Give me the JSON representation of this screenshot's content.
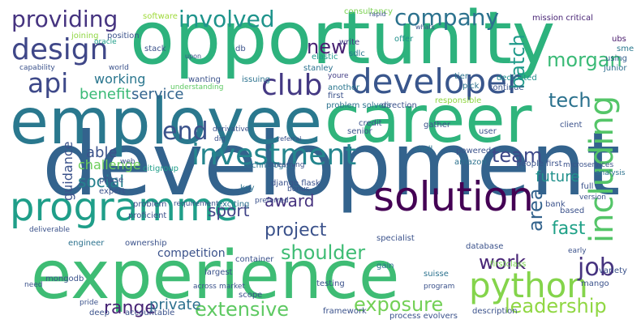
{
  "words": [
    {
      "text": "development",
      "color": "#33638d"
    },
    {
      "text": "opportunity",
      "color": "#2db27d"
    },
    {
      "text": "employee",
      "color": "#2a788e"
    },
    {
      "text": "career",
      "color": "#2fb47c"
    },
    {
      "text": "experience",
      "color": "#3ebc74"
    },
    {
      "text": "programme",
      "color": "#1f9e89"
    },
    {
      "text": "solution",
      "color": "#440154"
    },
    {
      "text": "python",
      "color": "#84d44b"
    },
    {
      "text": "developer",
      "color": "#39568c"
    },
    {
      "text": "investment",
      "color": "#24868e"
    },
    {
      "text": "club",
      "color": "#443983"
    },
    {
      "text": "design",
      "color": "#3f4788"
    },
    {
      "text": "api",
      "color": "#3e4989"
    },
    {
      "text": "involved",
      "color": "#1f948c"
    },
    {
      "text": "providing",
      "color": "#463480"
    },
    {
      "text": "company",
      "color": "#2c728e"
    },
    {
      "text": "including",
      "color": "#54c568"
    },
    {
      "text": "job",
      "color": "#46337f"
    },
    {
      "text": "project",
      "color": "#3b528b"
    },
    {
      "text": "shoulder",
      "color": "#3ebc74"
    },
    {
      "text": "extensive",
      "color": "#5ec962"
    },
    {
      "text": "leadership",
      "color": "#90d743"
    },
    {
      "text": "exposure",
      "color": "#73d056"
    },
    {
      "text": "end",
      "color": "#3b528b"
    },
    {
      "text": "tech",
      "color": "#2c728e"
    },
    {
      "text": "new",
      "color": "#482173"
    },
    {
      "text": "team",
      "color": "#3e4989"
    },
    {
      "text": "batch",
      "color": "#1f9a8a"
    },
    {
      "text": "morgan",
      "color": "#3aba76"
    },
    {
      "text": "area",
      "color": "#33638d"
    },
    {
      "text": "work",
      "color": "#482576"
    },
    {
      "text": "future",
      "color": "#21918c"
    },
    {
      "text": "fast",
      "color": "#1fa187"
    },
    {
      "text": "range",
      "color": "#482475"
    },
    {
      "text": "award",
      "color": "#46327e"
    },
    {
      "text": "sport",
      "color": "#414487"
    },
    {
      "text": "social",
      "color": "#26818e"
    },
    {
      "text": "private",
      "color": "#2d708e"
    },
    {
      "text": "benefit",
      "color": "#3aba76"
    },
    {
      "text": "service",
      "color": "#32648e"
    },
    {
      "text": "working",
      "color": "#2a768e"
    },
    {
      "text": "able",
      "color": "#3b528b"
    },
    {
      "text": "guidance",
      "color": "#3b528b"
    },
    {
      "text": "challenge",
      "color": "#6ccd5a"
    },
    {
      "text": "competition",
      "color": "#3b528b"
    },
    {
      "text": "software",
      "color": "#9fda3a"
    },
    {
      "text": "consultancy",
      "color": "#7ad151"
    },
    {
      "text": "rapid",
      "color": "#3b528b"
    },
    {
      "text": "mission critical",
      "color": "#482475"
    },
    {
      "text": "joining",
      "color": "#90d743"
    },
    {
      "text": "position",
      "color": "#3b528b"
    },
    {
      "text": "oracle",
      "color": "#1f9e89"
    },
    {
      "text": "stack",
      "color": "#3b528b"
    },
    {
      "text": "write",
      "color": "#433e85"
    },
    {
      "text": "sdlc",
      "color": "#2a788e"
    },
    {
      "text": "offer",
      "color": "#21918c"
    },
    {
      "text": "whats",
      "color": "#3b528b"
    },
    {
      "text": "ubs",
      "color": "#481a6c"
    },
    {
      "text": "sme",
      "color": "#2a788e"
    },
    {
      "text": "using",
      "color": "#355f8d"
    },
    {
      "text": "junior",
      "color": "#2e6e8e"
    },
    {
      "text": "capability",
      "color": "#3b528b"
    },
    {
      "text": "world",
      "color": "#3b528b"
    },
    {
      "text": "upon",
      "color": "#3b528b"
    },
    {
      "text": "db",
      "color": "#3b528b"
    },
    {
      "text": "elastic",
      "color": "#1f9a8a"
    },
    {
      "text": "stanley",
      "color": "#2c728e"
    },
    {
      "text": "youre",
      "color": "#433e85"
    },
    {
      "text": "issuing",
      "color": "#2c728e"
    },
    {
      "text": "wanting",
      "color": "#3b528b"
    },
    {
      "text": "understanding",
      "color": "#5ec962"
    },
    {
      "text": "another",
      "color": "#2a768e"
    },
    {
      "text": "first",
      "color": "#3b528b"
    },
    {
      "text": "tier",
      "color": "#2c728e"
    },
    {
      "text": "dedicated",
      "color": "#21918c"
    },
    {
      "text": "continue",
      "color": "#3b528b"
    },
    {
      "text": "pick",
      "color": "#2c728e"
    },
    {
      "text": "credit",
      "color": "#3b528b"
    },
    {
      "text": "gather",
      "color": "#3b528b"
    },
    {
      "text": "user",
      "color": "#3b528b"
    },
    {
      "text": "client",
      "color": "#3b528b"
    },
    {
      "text": "shell",
      "color": "#2c728e"
    },
    {
      "text": "technologist",
      "color": "#2c728e"
    },
    {
      "text": "powered",
      "color": "#3b528b"
    },
    {
      "text": "amazon",
      "color": "#2c728e"
    },
    {
      "text": "people first",
      "color": "#3b528b"
    },
    {
      "text": "microservices",
      "color": "#3b528b"
    },
    {
      "text": "analysis",
      "color": "#2c728e"
    },
    {
      "text": "senior",
      "color": "#3b528b"
    },
    {
      "text": "problem solvers",
      "color": "#2c728e"
    },
    {
      "text": "direction",
      "color": "#3b528b"
    },
    {
      "text": "responsible",
      "color": "#90d743"
    },
    {
      "text": "citigroup",
      "color": "#1f9e89"
    },
    {
      "text": "web",
      "color": "#3b528b"
    },
    {
      "text": "derivative",
      "color": "#3b528b"
    },
    {
      "text": "dig",
      "color": "#3b528b"
    },
    {
      "text": "referral",
      "color": "#3b528b"
    },
    {
      "text": "streaming",
      "color": "#3b528b"
    },
    {
      "text": "expert",
      "color": "#3b528b"
    },
    {
      "text": "phase",
      "color": "#3b528b"
    },
    {
      "text": "deliverable",
      "color": "#3b528b"
    },
    {
      "text": "proficient",
      "color": "#3b528b"
    },
    {
      "text": "key",
      "color": "#2c728e"
    },
    {
      "text": "django flask",
      "color": "#3b528b"
    },
    {
      "text": "bonus",
      "color": "#3b528b"
    },
    {
      "text": "exciting",
      "color": "#2c728e"
    },
    {
      "text": "preferred",
      "color": "#3b528b"
    },
    {
      "text": "problem",
      "color": "#3b528b"
    },
    {
      "text": "requirement",
      "color": "#3b528b"
    },
    {
      "text": "full",
      "color": "#3b528b"
    },
    {
      "text": "bank",
      "color": "#3b528b"
    },
    {
      "text": "version",
      "color": "#3b528b"
    },
    {
      "text": "based",
      "color": "#3b528b"
    },
    {
      "text": "engineer",
      "color": "#2c728e"
    },
    {
      "text": "ownership",
      "color": "#3b528b"
    },
    {
      "text": "container",
      "color": "#3b528b"
    },
    {
      "text": "largest",
      "color": "#3b528b"
    },
    {
      "text": "specialist",
      "color": "#3b528b"
    },
    {
      "text": "database",
      "color": "#3b528b"
    },
    {
      "text": "mongodb",
      "color": "#3b528b"
    },
    {
      "text": "need",
      "color": "#3b528b"
    },
    {
      "text": "market",
      "color": "#3b528b"
    },
    {
      "text": "gain",
      "color": "#2c728e"
    },
    {
      "text": "suisse",
      "color": "#2c728e"
    },
    {
      "text": "testing",
      "color": "#3b528b"
    },
    {
      "text": "firstclass",
      "color": "#7ad151"
    },
    {
      "text": "variety",
      "color": "#3b528b"
    },
    {
      "text": "mango",
      "color": "#3b528b"
    },
    {
      "text": "early",
      "color": "#3b528b"
    },
    {
      "text": "accountable",
      "color": "#3b528b"
    },
    {
      "text": "scope",
      "color": "#3b528b"
    },
    {
      "text": "pride",
      "color": "#3b528b"
    },
    {
      "text": "deep",
      "color": "#3b528b"
    },
    {
      "text": "framework",
      "color": "#3b528b"
    },
    {
      "text": "process evolvers",
      "color": "#3b528b"
    },
    {
      "text": "description",
      "color": "#3b528b"
    },
    {
      "text": "across",
      "color": "#3b528b"
    },
    {
      "text": "program",
      "color": "#3b528b"
    }
  ]
}
